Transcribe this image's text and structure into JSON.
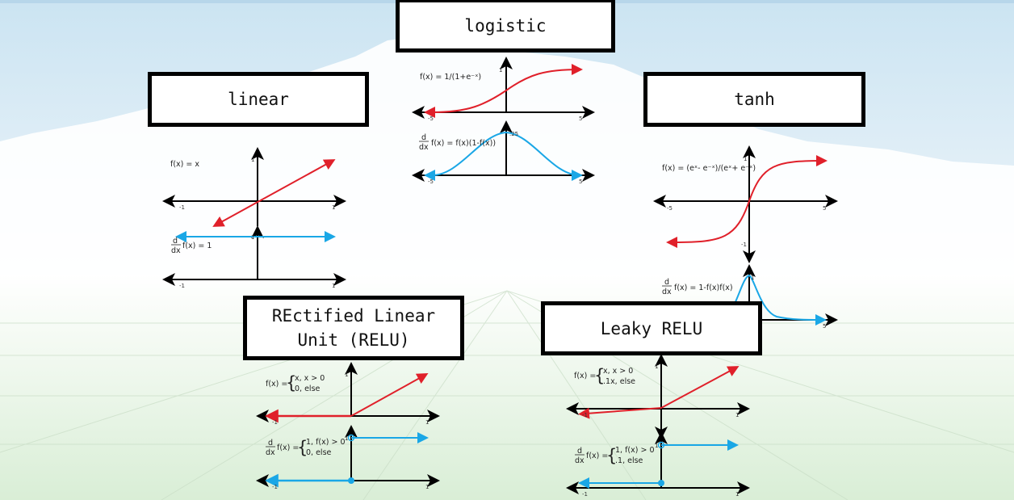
{
  "titles": {
    "logistic": "logistic",
    "linear": "linear",
    "tanh": "tanh",
    "relu": "REctified Linear\nUnit (RELU)",
    "leaky": "Leaky RELU"
  },
  "formulas": {
    "linear_f": "f(x) = x",
    "linear_df": "f(x) = 1",
    "logistic_f": "f(x) = 1/(1+e⁻ˣ)",
    "logistic_df": "f(x) = f(x)(1-f(x))",
    "tanh_f": "f(x) = (eˣ- e⁻ˣ)/(eˣ+ e⁻ˣ)",
    "tanh_df": "f(x) = 1-f(x)f(x)",
    "relu_f_case1": "x, x > 0",
    "relu_f_case2": "0, else",
    "relu_df_case1": "1, f(x) > 0",
    "relu_df_case2": "0, else",
    "leaky_f_case1": "x, x > 0",
    "leaky_f_case2": ".1x, else",
    "leaky_df_case1": "1, f(x) > 0",
    "leaky_df_case2": ".1, else",
    "fx_prefix": "f(x) =",
    "d": "d",
    "dx": "dx"
  },
  "ticks": {
    "one": "1",
    "neg_one": "-1",
    "five": "5",
    "neg_five": "-5",
    "quarter": ".25"
  },
  "colors": {
    "function": "#e0202a",
    "derivative": "#1aa7e6",
    "axis": "#000000",
    "box_border": "#000000"
  }
}
